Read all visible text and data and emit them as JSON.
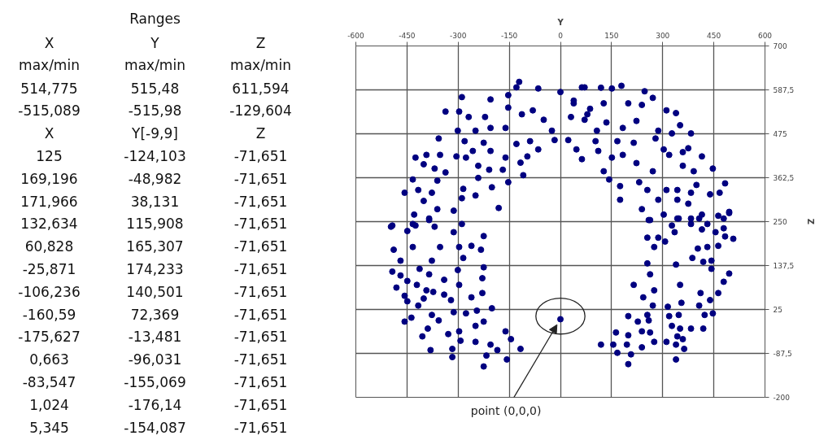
{
  "chart_data": [
    {
      "type": "other",
      "title": "Ranges",
      "annotations": [
        "X",
        "Y",
        "Z",
        "max/min",
        "max/min",
        "max/min",
        "514,775",
        "515,48",
        "611,594",
        "-515,089",
        "-515,98",
        "-129,604",
        "X",
        "Y[-9,9]",
        "Z",
        "125",
        "-124,103",
        "-71,651",
        "169,196",
        "-48,982",
        "-71,651",
        "171,966",
        "38,131",
        "-71,651",
        "132,634",
        "115,908",
        "-71,651",
        "60,828",
        "165,307",
        "-71,651",
        "-25,871",
        "174,233",
        "-71,651",
        "-106,236",
        "140,501",
        "-71,651",
        "-160,59",
        "72,369",
        "-71,651",
        "-175,627",
        "-13,481",
        "-71,651",
        "0,663",
        "-96,031",
        "-71,651",
        "-83,547",
        "-155,069",
        "-71,651",
        "1,024",
        "-176,14",
        "-71,651",
        "5,345",
        "-154,087",
        "-71,651"
      ]
    },
    {
      "type": "scatter",
      "xlabel": "Y",
      "ylabel": "Z",
      "grid": true,
      "marker": "circle",
      "xlim": [
        -600,
        600
      ],
      "xticks": [
        -600,
        -450,
        -300,
        -150,
        0,
        150,
        300,
        450,
        600
      ],
      "ylim": [
        -200,
        700
      ],
      "yticks": [
        -200,
        {
          "value": -87.5,
          "label": "-87,5"
        },
        25,
        {
          "value": 137.5,
          "label": "137,5"
        },
        250,
        {
          "value": 362.5,
          "label": "362,5"
        },
        475,
        {
          "value": 587.5,
          "label": "587,5"
        },
        700
      ],
      "annotations": [
        {
          "text": "point (0,0,0)",
          "x": 0,
          "y": 0
        }
      ],
      "series": [
        {
          "color": "#000080",
          "x": [
            -121,
            -129,
            -153,
            -65,
            0,
            -289,
            -205,
            -337,
            -297,
            -269,
            -221,
            -153,
            -113,
            -81,
            -49,
            -25,
            23,
            -17,
            -301,
            -249,
            -205,
            -161,
            -281,
            -225,
            -357,
            -425,
            -393,
            -353,
            -305,
            -277,
            -257,
            -205,
            -161,
            -129,
            -89,
            -65,
            -97,
            -401,
            -369,
            -337,
            -241,
            -209,
            -169,
            -117,
            -109,
            -153,
            -433,
            -417,
            -457,
            -377,
            -401,
            -361,
            -285,
            -241,
            -201,
            -249,
            -289,
            -181,
            -361,
            -313,
            -429,
            -385,
            -493,
            -433,
            47,
            63,
            39,
            79,
            107,
            63,
            71,
            119,
            151,
            179,
            247,
            271,
            311,
            339,
            351,
            239,
            199,
            127,
            87,
            39,
            31,
            71,
            135,
            183,
            223,
            287,
            327,
            383,
            279,
            215,
            167,
            103,
            111,
            151,
            183,
            223,
            127,
            143,
            175,
            231,
            271,
            303,
            319,
            359,
            375,
            415,
            447,
            359,
            391,
            399,
            483,
            439,
            467,
            383,
            343,
            311,
            255,
            175,
            239,
            287,
            343,
            375,
            415,
            463,
            495,
            263,
            343,
            383,
            -497,
            -449,
            -425,
            -385,
            -369,
            -313,
            -289,
            -225,
            -489,
            -433,
            -353,
            -297,
            -261,
            -233,
            -469,
            -377,
            -285,
            -493,
            -469,
            -413,
            -385,
            -421,
            -449,
            -481,
            -393,
            -373,
            -341,
            -301,
            -225,
            -229,
            -457,
            -401,
            -449,
            -417,
            -341,
            -321,
            -297,
            -261,
            -229,
            -201,
            -313,
            -277,
            -245,
            -457,
            -437,
            -377,
            -357,
            -389,
            -405,
            -329,
            -297,
            -249,
            -225,
            -381,
            -317,
            -293,
            -249,
            -205,
            -185,
            -161,
            -145,
            -117,
            -217,
            -157,
            -225,
            -317,
            0,
            259,
            303,
            347,
            327,
            383,
            407,
            431,
            479,
            495,
            255,
            287,
            307,
            275,
            335,
            415,
            455,
            479,
            483,
            507,
            387,
            403,
            431,
            463,
            419,
            443,
            443,
            255,
            339,
            263,
            215,
            351,
            243,
            275,
            271,
            315,
            355,
            411,
            439,
            463,
            495,
            479,
            407,
            423,
            447,
            199,
            255,
            227,
            259,
            319,
            347,
            327,
            351,
            383,
            419,
            163,
            199,
            239,
            263,
            119,
            155,
            195,
            239,
            275,
            311,
            343,
            359,
            339,
            363,
            167,
            207,
            199,
            339
          ],
          "values": [
            608,
            594,
            574,
            591,
            582,
            569,
            563,
            532,
            532,
            518,
            518,
            542,
            525,
            535,
            511,
            483,
            459,
            459,
            483,
            483,
            490,
            490,
            456,
            452,
            463,
            414,
            421,
            421,
            417,
            414,
            431,
            431,
            414,
            449,
            456,
            435,
            417,
            397,
            386,
            376,
            393,
            383,
            383,
            401,
            369,
            351,
            358,
            331,
            324,
            324,
            303,
            355,
            334,
            362,
            338,
            317,
            310,
            285,
            282,
            278,
            268,
            258,
            240,
            244,
            435,
            410,
            553,
            525,
            483,
            594,
            594,
            593,
            591,
            598,
            584,
            567,
            535,
            528,
            497,
            549,
            553,
            553,
            539,
            560,
            518,
            511,
            504,
            490,
            508,
            483,
            476,
            476,
            463,
            452,
            456,
            456,
            431,
            414,
            421,
            400,
            379,
            358,
            341,
            351,
            379,
            435,
            421,
            428,
            438,
            417,
            386,
            393,
            379,
            344,
            348,
            320,
            324,
            324,
            331,
            331,
            331,
            306,
            282,
            306,
            306,
            296,
            268,
            265,
            275,
            254,
            258,
            258,
            237,
            226,
            240,
            254,
            237,
            223,
            244,
            213,
            178,
            185,
            185,
            185,
            188,
            178,
            150,
            150,
            157,
            122,
            112,
            129,
            115,
            88,
            98,
            81,
            74,
            70,
            101,
            126,
            133,
            105,
            60,
            53,
            46,
            35,
            63,
            49,
            88,
            56,
            67,
            28,
            18,
            15,
            22,
            -6,
            4,
            11,
            -3,
            -24,
            -44,
            -38,
            -31,
            -17,
            -6,
            -79,
            -76,
            -55,
            -58,
            -65,
            -79,
            -31,
            -51,
            -76,
            -93,
            -103,
            -121,
            -97,
            0,
            254,
            268,
            258,
            240,
            244,
            258,
            244,
            258,
            272,
            209,
            209,
            199,
            185,
            223,
            230,
            223,
            233,
            212,
            206,
            157,
            181,
            185,
            188,
            147,
            150,
            129,
            143,
            140,
            115,
            88,
            88,
            56,
            74,
            35,
            32,
            42,
            67,
            49,
            67,
            117,
            96,
            35,
            11,
            15,
            8,
            11,
            -6,
            -3,
            8,
            11,
            -17,
            -24,
            -24,
            -24,
            -34,
            -41,
            -31,
            -34,
            -65,
            -65,
            -65,
            -72,
            -58,
            -58,
            -44,
            -51,
            -65,
            -76,
            -86,
            -90,
            -115,
            -103
          ]
        }
      ]
    }
  ]
}
